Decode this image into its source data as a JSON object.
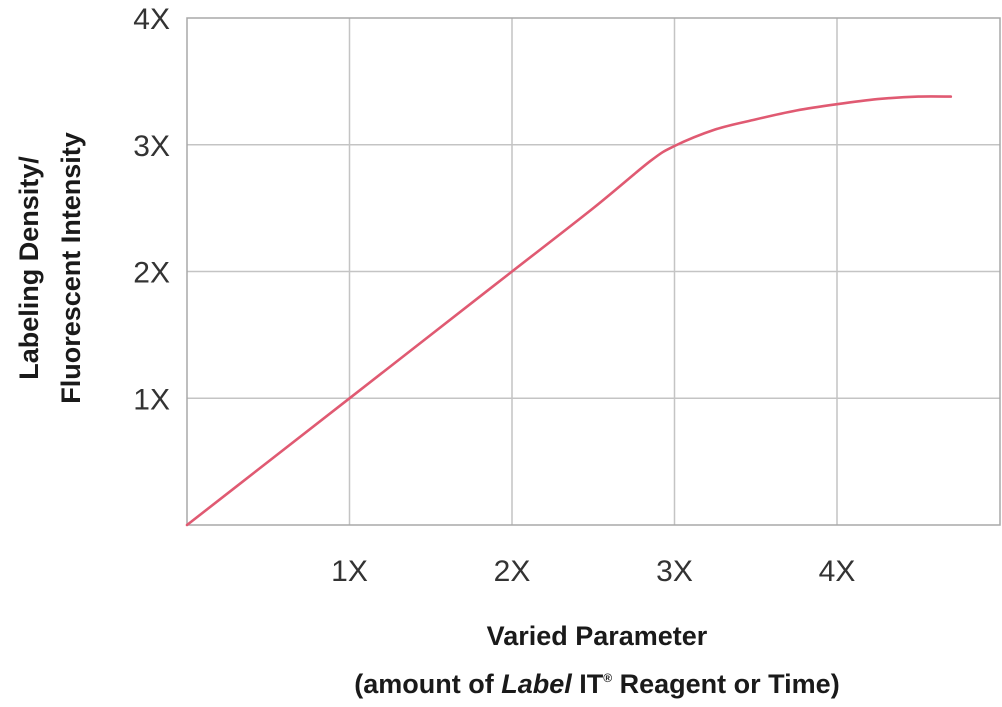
{
  "chart_data": {
    "type": "line",
    "title": "",
    "xlabel_line1": "Varied Parameter",
    "xlabel_line2_before": "(amount of ",
    "xlabel_line2_italic": "Label",
    "xlabel_line2_mid": " IT",
    "xlabel_line2_sup": "®",
    "xlabel_line2_after": " Reagent or Time)",
    "ylabel_line1": "Labeling Density/",
    "ylabel_line2": "Fluorescent Intensity",
    "xlim": [
      0,
      4.7
    ],
    "ylim": [
      0,
      4
    ],
    "x_ticks": [
      {
        "value": 1,
        "label": "1X"
      },
      {
        "value": 2,
        "label": "2X"
      },
      {
        "value": 3,
        "label": "3X"
      },
      {
        "value": 4,
        "label": "4X"
      }
    ],
    "y_ticks": [
      {
        "value": 1,
        "label": "1X"
      },
      {
        "value": 2,
        "label": "2X"
      },
      {
        "value": 3,
        "label": "3X"
      },
      {
        "value": 4,
        "label": "4X"
      }
    ],
    "grid": true,
    "line_color": "#e05a72",
    "series": [
      {
        "values": [
          [
            0,
            0
          ],
          [
            0.5,
            0.5
          ],
          [
            1,
            1.0
          ],
          [
            1.5,
            1.5
          ],
          [
            2,
            2.0
          ],
          [
            2.5,
            2.5
          ],
          [
            2.85,
            2.87
          ],
          [
            3,
            2.99
          ],
          [
            3.25,
            3.12
          ],
          [
            3.5,
            3.2
          ],
          [
            3.75,
            3.27
          ],
          [
            4,
            3.32
          ],
          [
            4.25,
            3.36
          ],
          [
            4.5,
            3.38
          ],
          [
            4.7,
            3.38
          ]
        ]
      }
    ]
  }
}
